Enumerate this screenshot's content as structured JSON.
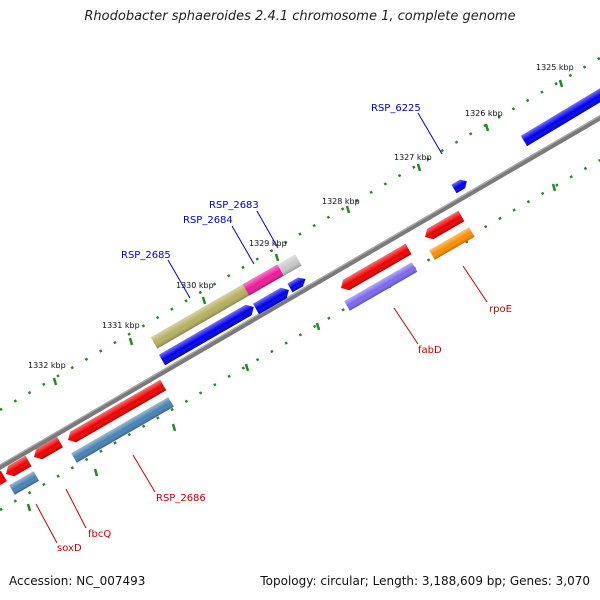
{
  "title": "Rhodobacter sphaeroides 2.4.1 chromosome 1, complete genome",
  "footer": {
    "accession": "Accession: NC_007493",
    "topology": "Topology: circular; Length: 3,188,609 bp; Genes: 3,070"
  },
  "colors": {
    "backbone": "#808080",
    "tick": "#228b22",
    "forward_label": "#0000cc",
    "reverse_label": "#cc0000"
  },
  "scale": {
    "ticks": [
      "1325 kbp",
      "1326 kbp",
      "1327 kbp",
      "1328 kbp",
      "1329 kbp",
      "1330 kbp",
      "1331 kbp",
      "1332 kbp"
    ]
  },
  "labels": {
    "rsp_6225": "RSP_6225",
    "rsp_2683": "RSP_2683",
    "rsp_2684": "RSP_2684",
    "rsp_2685": "RSP_2685",
    "rpoE": "rpoE",
    "fabD": "fabD",
    "rsp_2686": "RSP_2686",
    "fbcQ": "fbcQ",
    "soxD": "soxD"
  }
}
